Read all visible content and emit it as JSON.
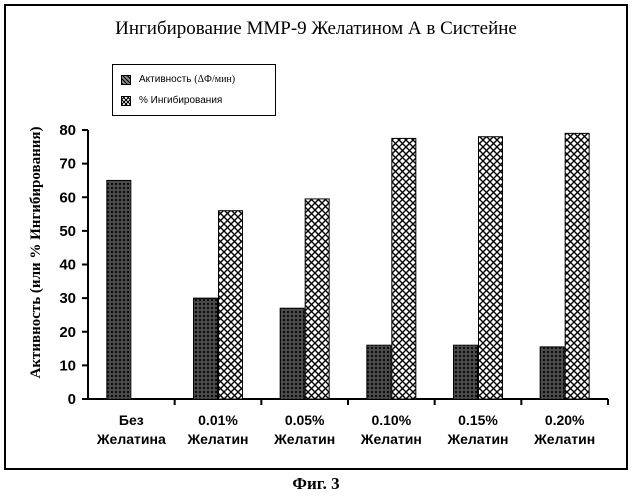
{
  "chart_data": {
    "type": "bar",
    "title": "Ингибирование ММР-9 Желатином А в Систейне",
    "ylabel": "Активность (или % Ингибирования)",
    "xlabel": "",
    "ylim": [
      0,
      80
    ],
    "yticks": [
      "0",
      "10",
      "20",
      "30",
      "40",
      "50",
      "60",
      "70",
      "80"
    ],
    "categories": [
      [
        "Без",
        "Желатина"
      ],
      [
        "0.01%",
        "Желатин"
      ],
      [
        "0.05%",
        "Желатин"
      ],
      [
        "0.10%",
        "Желатин"
      ],
      [
        "0.15%",
        "Желатин"
      ],
      [
        "0.20%",
        "Желатин"
      ]
    ],
    "series": [
      {
        "name": "Активность",
        "unit": "(ΔФ/мин)",
        "values": [
          65,
          30,
          27,
          16,
          16,
          15.5
        ]
      },
      {
        "name": "% Ингибирования",
        "unit": "",
        "values": [
          null,
          56,
          59.5,
          77.5,
          78,
          79
        ]
      }
    ],
    "legend_position": "top-left"
  },
  "caption": "Фиг. 3",
  "colors": {
    "axis": "#000000",
    "background": "#ffffff"
  }
}
